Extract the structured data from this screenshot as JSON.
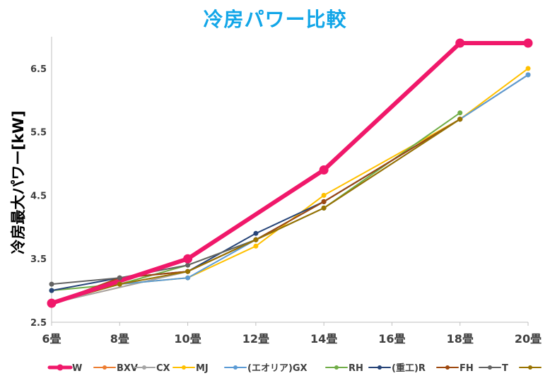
{
  "chart_data": {
    "type": "line",
    "title": "冷房パワー比較",
    "xlabel": "",
    "ylabel": "冷房最大パワー[kW]",
    "categories": [
      "6畳",
      "8畳",
      "10畳",
      "12畳",
      "14畳",
      "16畳",
      "18畳",
      "20畳"
    ],
    "yticks": [
      "2.5",
      "3.5",
      "4.5",
      "5.5",
      "6.5"
    ],
    "ylim": [
      2.5,
      7.0
    ],
    "grid": false,
    "legend_position": "bottom",
    "series": [
      {
        "name": "W",
        "color": "#f0186a",
        "width": 6,
        "values": [
          2.8,
          null,
          3.5,
          null,
          4.9,
          null,
          6.9,
          6.9
        ]
      },
      {
        "name": "BXV",
        "color": "#ed7d31",
        "width": 2,
        "values": [
          2.8,
          null,
          3.3,
          3.8,
          4.4,
          null,
          5.7,
          6.4
        ]
      },
      {
        "name": "CX",
        "color": "#a5a5a5",
        "width": 2,
        "values": [
          2.8,
          null,
          3.3,
          3.8,
          4.4,
          null,
          5.7,
          6.4
        ]
      },
      {
        "name": "MJ",
        "color": "#ffc000",
        "width": 2,
        "values": [
          2.8,
          3.1,
          3.2,
          3.7,
          4.5,
          null,
          5.7,
          6.5
        ]
      },
      {
        "name": "(エオリア)GX",
        "color": "#5b9bd5",
        "width": 2,
        "values": [
          2.8,
          3.1,
          3.2,
          3.8,
          4.4,
          null,
          5.7,
          6.4
        ]
      },
      {
        "name": "RH",
        "color": "#70ad47",
        "width": 2,
        "values": [
          3.0,
          3.1,
          3.4,
          3.8,
          4.3,
          null,
          5.8,
          null
        ]
      },
      {
        "name": "(重工)R",
        "color": "#264478",
        "width": 2,
        "values": [
          3.0,
          3.2,
          3.3,
          3.9,
          4.4,
          null,
          5.7,
          null
        ]
      },
      {
        "name": "FH",
        "color": "#9e480e",
        "width": 2,
        "values": [
          2.8,
          3.2,
          3.3,
          3.8,
          4.4,
          null,
          5.7,
          null
        ]
      },
      {
        "name": "T",
        "color": "#636363",
        "width": 2,
        "values": [
          3.1,
          3.2,
          3.4,
          3.8,
          4.3,
          null,
          5.7,
          null
        ]
      },
      {
        "name": "",
        "color": "#997300",
        "width": 2,
        "values": [
          2.8,
          3.1,
          3.3,
          3.8,
          4.3,
          null,
          5.7,
          null
        ]
      }
    ]
  }
}
